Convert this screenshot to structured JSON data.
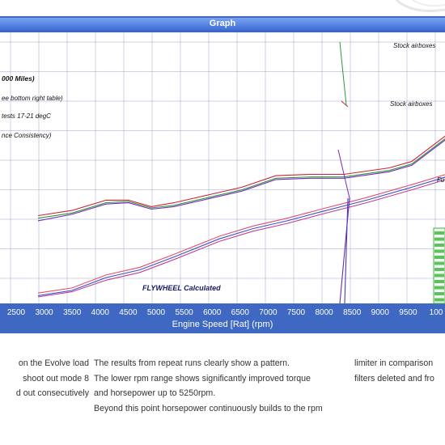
{
  "window": {
    "title": "Graph"
  },
  "chart_data": {
    "type": "line",
    "xlabel": "Engine Speed [Rat] (rpm)",
    "x_ticks": [
      2500,
      3000,
      3500,
      4000,
      4500,
      5000,
      5500,
      6000,
      6500,
      7000,
      7500,
      8000,
      8500,
      9000,
      9500,
      100
    ],
    "xlim": [
      1900,
      10000
    ],
    "grid": true,
    "annotations": [
      "000 Miles)",
      "ee bottom right table)",
      "tests 17-21 degC",
      "nce Consistency)",
      "FLYWHEEL Calculated",
      "Stock airboxes",
      "Stock  airboxes",
      "Fu"
    ],
    "series": [
      {
        "x": [
          1900,
          2200,
          2500,
          2700,
          2900,
          3100,
          3400,
          3700,
          4000,
          4300,
          4600,
          5000,
          5200,
          5500,
          5800,
          6100,
          6400,
          6700,
          7000,
          7300,
          7600,
          7900,
          8100,
          8200,
          8300
        ],
        "y": [
          0.68,
          0.72,
          0.8,
          0.8,
          0.75,
          0.78,
          0.84,
          0.9,
          0.99,
          1.0,
          1.0,
          1.05,
          1.1,
          1.3,
          1.48,
          1.64,
          1.72,
          1.82,
          1.9,
          1.98,
          2.03,
          2.05,
          2.05,
          1.8,
          1.4
        ]
      },
      {
        "x": [
          1900,
          2200,
          2500,
          2700,
          2900,
          3100,
          3400,
          3700,
          4000,
          4300,
          4600,
          5000,
          5200,
          5500,
          5800,
          6100,
          6400,
          6700,
          7000,
          7300,
          7600,
          7900,
          8100,
          8200,
          8300
        ],
        "y": [
          0.66,
          0.7,
          0.78,
          0.79,
          0.74,
          0.76,
          0.82,
          0.88,
          0.97,
          0.98,
          0.98,
          1.03,
          1.08,
          1.28,
          1.46,
          1.62,
          1.7,
          1.8,
          1.88,
          1.96,
          2.01,
          2.03,
          2.03,
          1.78,
          1.38
        ]
      },
      {
        "x": [
          1900,
          2200,
          2500,
          2700,
          2900,
          3100,
          3400,
          3700,
          4000,
          4300,
          4600,
          5000,
          5200,
          5500,
          5800,
          6100,
          6400,
          6700,
          7000,
          7300,
          7600,
          7900,
          8100,
          8200,
          8300
        ],
        "y": [
          0.64,
          0.69,
          0.77,
          0.78,
          0.73,
          0.75,
          0.81,
          0.87,
          0.96,
          0.97,
          0.97,
          1.02,
          1.07,
          1.27,
          1.45,
          1.61,
          1.69,
          1.79,
          1.87,
          1.95,
          2.0,
          2.02,
          2.02,
          1.77,
          1.37
        ]
      },
      {
        "x": [
          1900,
          2200,
          2500,
          2800,
          3100,
          3500,
          3800,
          4100,
          4400,
          4800,
          5200,
          5500,
          5800,
          6100,
          6400,
          6700,
          7000,
          7300,
          7600,
          7900,
          8100,
          8300
        ],
        "y": [
          0.08,
          0.12,
          0.22,
          0.28,
          0.38,
          0.52,
          0.6,
          0.66,
          0.73,
          0.82,
          0.92,
          1.0,
          1.08,
          1.15,
          1.14,
          1.11,
          1.1,
          1.08,
          1.05,
          1.0,
          0.95,
          0.82
        ]
      },
      {
        "x": [
          1900,
          2200,
          2500,
          2800,
          3100,
          3500,
          3800,
          4100,
          4400,
          4800,
          5200,
          5500,
          5800,
          6100,
          6400,
          6700,
          7000,
          7300,
          7600,
          7900,
          8100,
          8300
        ],
        "y": [
          0.06,
          0.1,
          0.2,
          0.26,
          0.36,
          0.5,
          0.58,
          0.64,
          0.71,
          0.8,
          0.9,
          0.98,
          1.06,
          1.13,
          1.12,
          1.09,
          1.08,
          1.06,
          1.03,
          0.98,
          0.93,
          0.8
        ]
      },
      {
        "x": [
          1900,
          2200,
          2500,
          2800,
          3100,
          3500,
          3800,
          4100,
          4400,
          4800,
          5200,
          5500,
          5800,
          6100,
          6400,
          6700,
          7000,
          7300,
          7600,
          7900,
          8100,
          8300
        ],
        "y": [
          0.05,
          0.09,
          0.18,
          0.24,
          0.34,
          0.48,
          0.56,
          0.62,
          0.69,
          0.78,
          0.88,
          0.96,
          1.04,
          1.11,
          1.1,
          1.07,
          1.06,
          1.04,
          1.01,
          0.96,
          0.91,
          0.78
        ]
      }
    ],
    "colors": [
      "#d0203a",
      "#2a9a3a",
      "#7a2ac0",
      "#e0506a",
      "#3a50d0",
      "#c04090"
    ]
  },
  "text": {
    "left": [
      "on the Evolve load",
      "shoot out mode 8",
      "d out consecutively"
    ],
    "middle": [
      "The results from repeat runs clearly show a pattern.",
      "The lower rpm range shows significantly improved torque",
      "and horsepower up to 5250rpm.",
      "Beyond this point horsepower continuously builds to the rpm"
    ],
    "right": [
      "limiter in comparison",
      "filters deleted and fro"
    ]
  }
}
